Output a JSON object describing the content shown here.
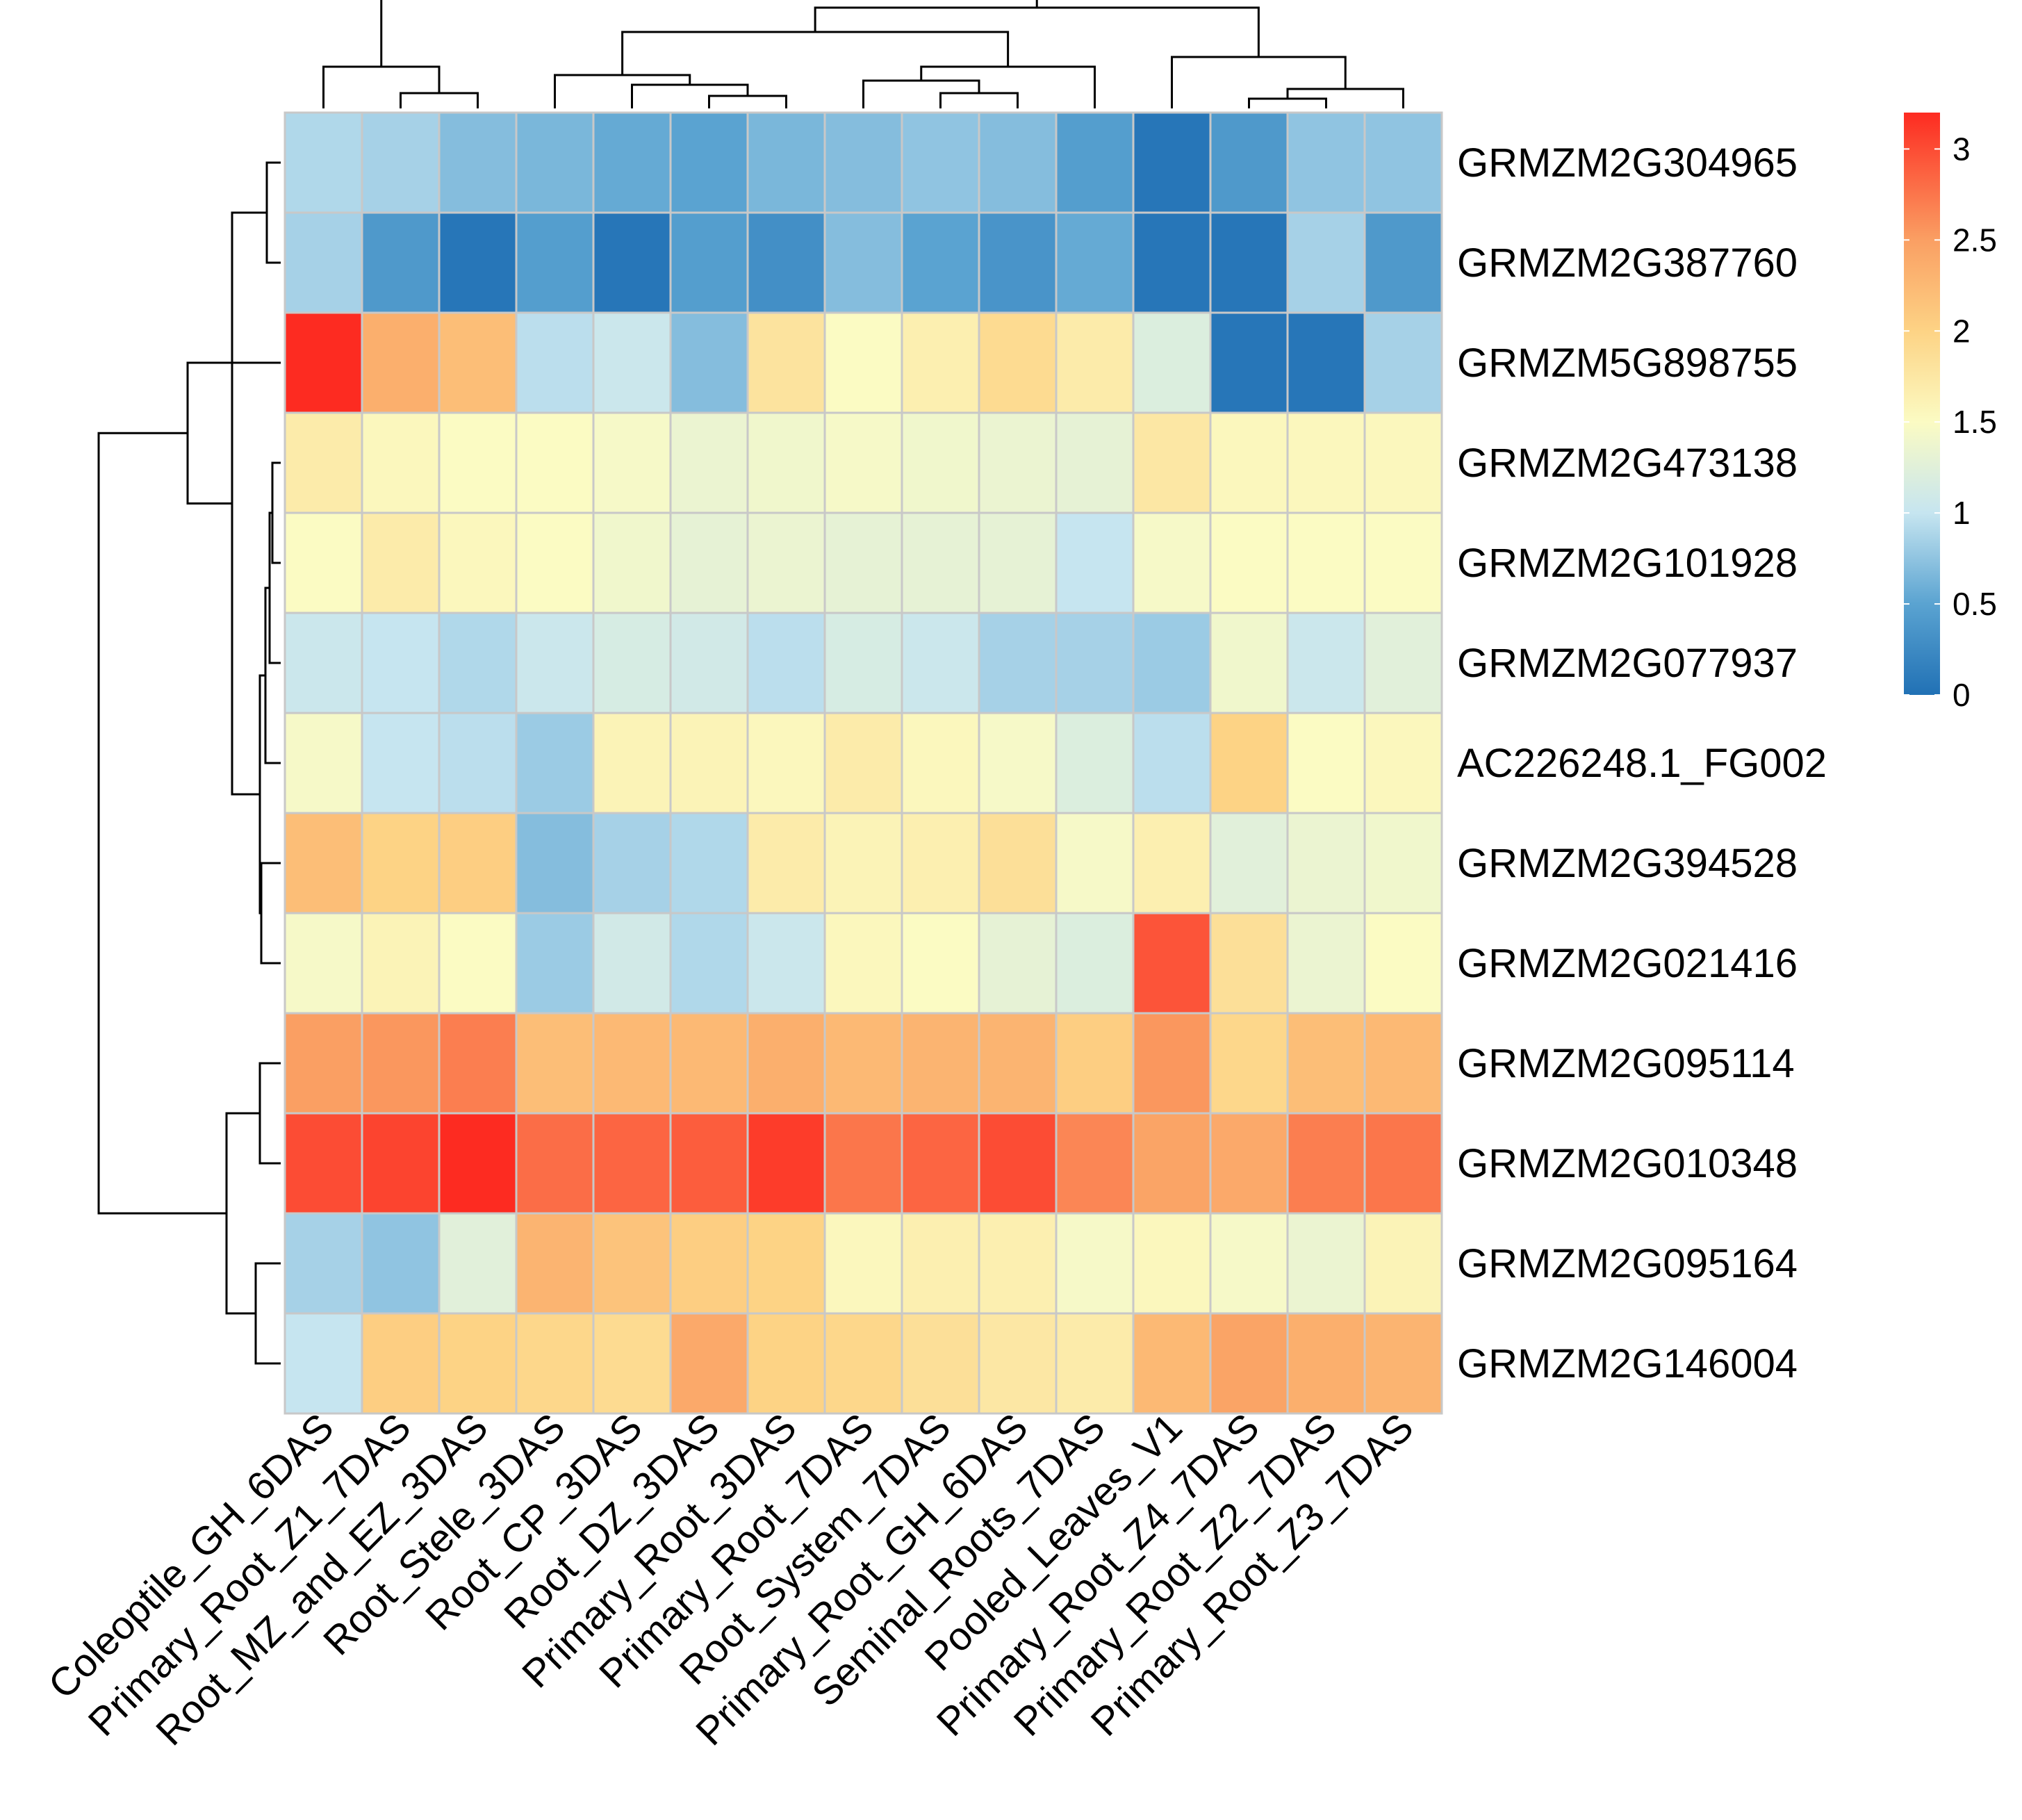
{
  "chart_data": {
    "type": "heatmap",
    "title": "",
    "xlabel": "",
    "ylabel": "",
    "columns": [
      "Coleoptile_GH_6DAS",
      "Primary_Root_Z1_7DAS",
      "Root_MZ_and_EZ_3DAS",
      "Root_Stele_3DAS",
      "Root_CP_3DAS",
      "Root_DZ_3DAS",
      "Primary_Root_3DAS",
      "Primary_Root_7DAS",
      "Root_System_7DAS",
      "Primary_Root_GH_6DAS",
      "Seminal_Roots_7DAS",
      "Pooled_Leaves_V1",
      "Primary_Root_Z4_7DAS",
      "Primary_Root_Z2_7DAS",
      "Primary_Root_Z3_7DAS"
    ],
    "rows": [
      "GRMZM2G304965",
      "GRMZM2G387760",
      "GRMZM5G898755",
      "GRMZM2G473138",
      "GRMZM2G101928",
      "GRMZM2G077937",
      "AC226248.1_FG002",
      "GRMZM2G394528",
      "GRMZM2G021416",
      "GRMZM2G095114",
      "GRMZM2G010348",
      "GRMZM2G095164",
      "GRMZM2G146004"
    ],
    "values": [
      [
        0.9,
        0.85,
        0.7,
        0.65,
        0.55,
        0.5,
        0.65,
        0.7,
        0.75,
        0.7,
        0.45,
        0.05,
        0.4,
        0.75,
        0.75
      ],
      [
        0.85,
        0.4,
        0.05,
        0.45,
        0.05,
        0.45,
        0.3,
        0.7,
        0.5,
        0.35,
        0.55,
        0.05,
        0.05,
        0.85,
        0.4
      ],
      [
        3.2,
        2.35,
        2.2,
        0.95,
        1.05,
        0.7,
        1.8,
        1.5,
        1.65,
        1.9,
        1.7,
        1.2,
        0.05,
        0.05,
        0.85
      ],
      [
        1.7,
        1.55,
        1.5,
        1.5,
        1.45,
        1.35,
        1.4,
        1.45,
        1.4,
        1.35,
        1.3,
        1.75,
        1.55,
        1.55,
        1.55
      ],
      [
        1.5,
        1.7,
        1.55,
        1.5,
        1.4,
        1.3,
        1.35,
        1.3,
        1.3,
        1.3,
        1.0,
        1.45,
        1.5,
        1.5,
        1.5
      ],
      [
        1.05,
        1.0,
        0.9,
        1.05,
        1.15,
        1.1,
        0.95,
        1.15,
        1.05,
        0.85,
        0.85,
        0.8,
        1.4,
        1.05,
        1.25
      ],
      [
        1.45,
        1.0,
        0.95,
        0.8,
        1.6,
        1.6,
        1.55,
        1.7,
        1.55,
        1.45,
        1.2,
        0.95,
        2.0,
        1.5,
        1.55
      ],
      [
        2.2,
        2.0,
        2.05,
        0.7,
        0.85,
        0.9,
        1.7,
        1.6,
        1.65,
        1.85,
        1.45,
        1.65,
        1.25,
        1.35,
        1.4
      ],
      [
        1.45,
        1.6,
        1.5,
        0.8,
        1.1,
        0.9,
        1.05,
        1.55,
        1.5,
        1.3,
        1.2,
        2.95,
        1.85,
        1.35,
        1.5
      ],
      [
        2.5,
        2.55,
        2.7,
        2.2,
        2.25,
        2.25,
        2.35,
        2.25,
        2.3,
        2.3,
        2.05,
        2.55,
        1.95,
        2.2,
        2.25
      ],
      [
        3.0,
        3.05,
        3.2,
        2.8,
        2.85,
        2.9,
        3.1,
        2.75,
        2.85,
        3.0,
        2.65,
        2.45,
        2.4,
        2.7,
        2.75
      ],
      [
        0.85,
        0.75,
        1.25,
        2.3,
        2.15,
        2.05,
        2.0,
        1.55,
        1.65,
        1.65,
        1.45,
        1.55,
        1.45,
        1.35,
        1.6
      ],
      [
        1.0,
        2.05,
        2.0,
        1.95,
        1.9,
        2.4,
        2.0,
        1.95,
        1.85,
        1.75,
        1.7,
        2.25,
        2.45,
        2.35,
        2.3
      ]
    ],
    "color_scale": {
      "min": 0,
      "max": 3.2,
      "stops": [
        [
          0,
          "#2171b5"
        ],
        [
          0.5,
          "#5aa3d1"
        ],
        [
          1,
          "#c6e5f0"
        ],
        [
          1.5,
          "#fbfbc3"
        ],
        [
          2,
          "#fdd385"
        ],
        [
          2.5,
          "#fa9f63"
        ],
        [
          3.2,
          "#fd2b21"
        ]
      ],
      "ticks": [
        0,
        0.5,
        1,
        1.5,
        2,
        2.5,
        3
      ],
      "tick_labels": [
        "0",
        "0.5",
        "1",
        "1.5",
        "2",
        "2.5",
        "3"
      ]
    },
    "grid_color": "#c8c8c8",
    "column_dendrogram": true,
    "row_dendrogram": true,
    "legend_position": "right"
  }
}
